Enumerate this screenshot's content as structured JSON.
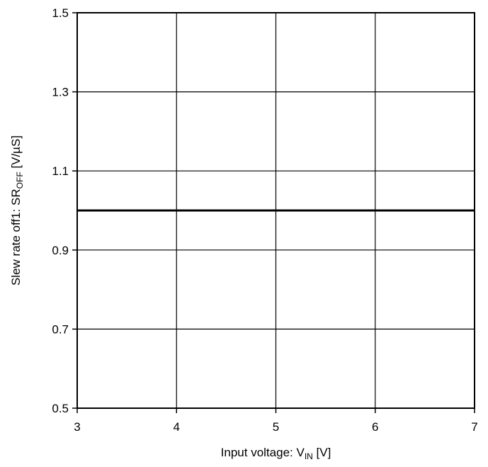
{
  "chart_data": {
    "type": "line",
    "title": "",
    "xlabel": {
      "prefix": "Input voltage: V",
      "subscript": "IN",
      "suffix": " [V]"
    },
    "ylabel": {
      "prefix": "Slew rate off1: SR",
      "subscript": "OFF",
      "suffix": " [V/µS]"
    },
    "xlim": [
      3,
      7
    ],
    "ylim": [
      0.5,
      1.5
    ],
    "x_ticks": [
      "3",
      "4",
      "5",
      "6",
      "7"
    ],
    "y_ticks": [
      "0.5",
      "0.7",
      "0.9",
      "1.1",
      "1.3",
      "1.5"
    ],
    "grid": true,
    "series": [
      {
        "x": [
          3,
          7
        ],
        "values": [
          1.0,
          1.0
        ],
        "color": "#000000"
      }
    ]
  }
}
